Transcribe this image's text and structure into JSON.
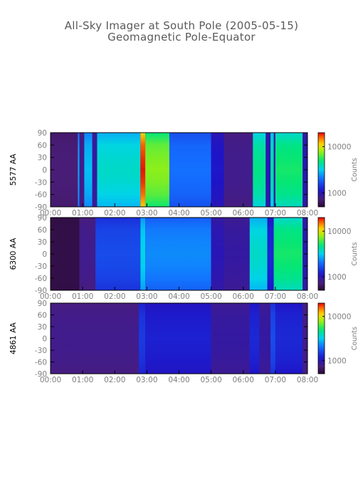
{
  "figure": {
    "title": "All-Sky Imager at South Pole (2005-05-15)",
    "subtitle": "Geomagnetic Pole-Equator"
  },
  "colors": {
    "axis": "#000000",
    "tick_text": "#7f7f7f",
    "background_low": "#4a1f7a"
  },
  "chart_data": [
    {
      "type": "heatmap",
      "panel": "5577 AA",
      "ylabel": "5577 AA",
      "xticks": [
        "00:00",
        "01:00",
        "02:00",
        "03:00",
        "04:00",
        "05:00",
        "06:00",
        "07:00",
        "08:00"
      ],
      "yticks": [
        90,
        60,
        30,
        0,
        -30,
        -60,
        -90
      ],
      "xlim_hours": [
        0,
        8
      ],
      "ylim": [
        -90,
        90
      ],
      "colorbar": {
        "label": "Counts",
        "ticks": [
          1000,
          10000
        ],
        "scale": "log",
        "range": [
          500,
          20000
        ]
      },
      "description_bands_log10_counts": [
        {
          "t": [
            0.0,
            0.85
          ],
          "v": 2.85
        },
        {
          "t": [
            0.85,
            0.9
          ],
          "v": 3.4
        },
        {
          "t": [
            0.9,
            1.05
          ],
          "v": 2.9
        },
        {
          "t": [
            1.05,
            1.3
          ],
          "v": 3.45
        },
        {
          "t": [
            1.3,
            1.45
          ],
          "v": 2.95
        },
        {
          "t": [
            1.45,
            2.8
          ],
          "v": 3.55
        },
        {
          "t": [
            2.8,
            2.95
          ],
          "v": 4.25
        },
        {
          "t": [
            2.95,
            3.7
          ],
          "v": 3.85
        },
        {
          "t": [
            3.7,
            5.0
          ],
          "v": 3.3
        },
        {
          "t": [
            5.0,
            5.4
          ],
          "v": 3.05
        },
        {
          "t": [
            5.4,
            6.3
          ],
          "v": 2.9
        },
        {
          "t": [
            6.3,
            6.7
          ],
          "v": 3.65
        },
        {
          "t": [
            6.7,
            6.85
          ],
          "v": 3.0
        },
        {
          "t": [
            6.85,
            6.95
          ],
          "v": 3.6
        },
        {
          "t": [
            6.95,
            7.0
          ],
          "v": 3.0
        },
        {
          "t": [
            7.0,
            7.85
          ],
          "v": 3.7
        },
        {
          "t": [
            7.85,
            8.0
          ],
          "v": 3.0
        }
      ]
    },
    {
      "type": "heatmap",
      "panel": "6300 AA",
      "ylabel": "6300 AA",
      "xticks": [
        "00:00",
        "01:00",
        "02:00",
        "03:00",
        "04:00",
        "05:00",
        "06:00",
        "07:00",
        "08:00"
      ],
      "yticks": [
        90,
        60,
        30,
        0,
        -30,
        -60,
        -90
      ],
      "xlim_hours": [
        0,
        8
      ],
      "ylim": [
        -90,
        90
      ],
      "colorbar": {
        "label": "Counts",
        "ticks": [
          1000,
          10000
        ],
        "scale": "log",
        "range": [
          500,
          20000
        ]
      },
      "description_bands_log10_counts": [
        {
          "t": [
            0.0,
            0.9
          ],
          "v": 2.75
        },
        {
          "t": [
            0.9,
            1.4
          ],
          "v": 2.9
        },
        {
          "t": [
            1.4,
            2.8
          ],
          "v": 3.2
        },
        {
          "t": [
            2.8,
            2.95
          ],
          "v": 3.5
        },
        {
          "t": [
            2.95,
            5.0
          ],
          "v": 3.35
        },
        {
          "t": [
            5.0,
            5.4
          ],
          "v": 3.0
        },
        {
          "t": [
            5.4,
            6.2
          ],
          "v": 2.95
        },
        {
          "t": [
            6.2,
            6.75
          ],
          "v": 3.55
        },
        {
          "t": [
            6.75,
            6.95
          ],
          "v": 3.1
        },
        {
          "t": [
            6.95,
            7.85
          ],
          "v": 3.7
        },
        {
          "t": [
            7.85,
            8.0
          ],
          "v": 3.0
        }
      ]
    },
    {
      "type": "heatmap",
      "panel": "4861 AA",
      "ylabel": "4861 AA",
      "xticks": [
        "00:00",
        "01:00",
        "02:00",
        "03:00",
        "04:00",
        "05:00",
        "06:00",
        "07:00",
        "08:00"
      ],
      "yticks": [
        90,
        60,
        30,
        0,
        -30,
        -60,
        -90
      ],
      "xlim_hours": [
        0,
        8
      ],
      "ylim": [
        -90,
        90
      ],
      "colorbar": {
        "label": "Counts",
        "ticks": [
          1000,
          10000
        ],
        "scale": "log",
        "range": [
          500,
          20000
        ]
      },
      "description_bands_log10_counts": [
        {
          "t": [
            0.0,
            2.75
          ],
          "v": 2.9
        },
        {
          "t": [
            2.75,
            2.95
          ],
          "v": 3.15
        },
        {
          "t": [
            2.95,
            5.0
          ],
          "v": 3.08
        },
        {
          "t": [
            5.0,
            6.2
          ],
          "v": 2.95
        },
        {
          "t": [
            6.2,
            6.5
          ],
          "v": 3.1
        },
        {
          "t": [
            6.5,
            6.85
          ],
          "v": 2.95
        },
        {
          "t": [
            6.85,
            7.0
          ],
          "v": 3.2
        },
        {
          "t": [
            7.0,
            7.85
          ],
          "v": 3.1
        },
        {
          "t": [
            7.85,
            8.0
          ],
          "v": 2.9
        }
      ]
    }
  ]
}
